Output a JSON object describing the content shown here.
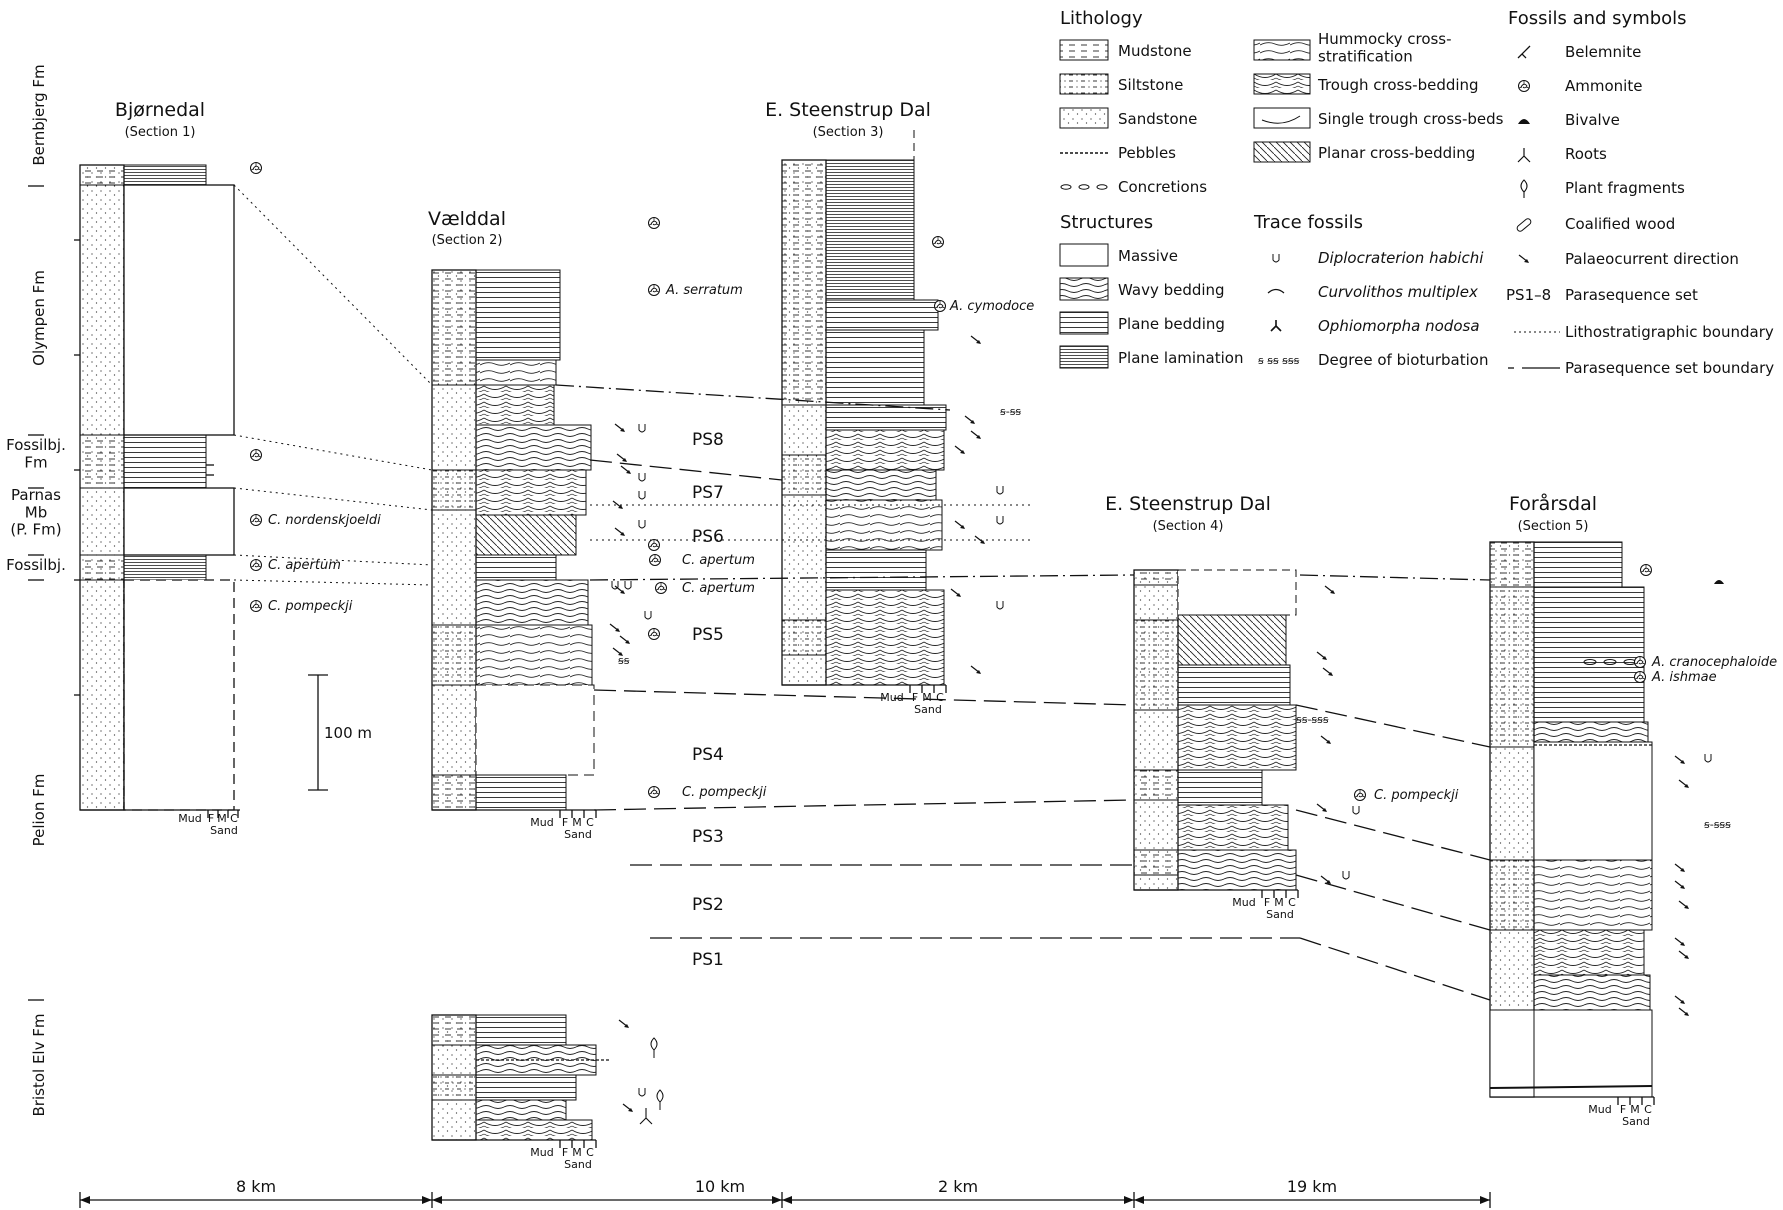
{
  "formations": [
    {
      "key": "bernbjerg",
      "label": "Bernbjerg Fm"
    },
    {
      "key": "olympen",
      "label": "Olympen Fm"
    },
    {
      "key": "fossilbj",
      "label": "Fossilbj.\nFm"
    },
    {
      "key": "parnas",
      "label": "Parnas\nMb\n(P. Fm)"
    },
    {
      "key": "fossilbj2",
      "label": "Fossilbj."
    },
    {
      "key": "pelion",
      "label": "Pelion Fm"
    },
    {
      "key": "bristol",
      "label": "Bristol Elv Fm"
    }
  ],
  "sections": [
    {
      "key": "s1",
      "name": "Bjørnedal",
      "sub": "(Section 1)"
    },
    {
      "key": "s2",
      "name": "Vælddal",
      "sub": "(Section 2)"
    },
    {
      "key": "s3",
      "name": "E. Steenstrup Dal",
      "sub": "(Section 3)"
    },
    {
      "key": "s4",
      "name": "E. Steenstrup Dal",
      "sub": "(Section 4)"
    },
    {
      "key": "s5",
      "name": "Forårsdal",
      "sub": "(Section 5)"
    }
  ],
  "grain_scale": {
    "mud": "Mud",
    "f": "F",
    "m": "M",
    "c": "C",
    "sand": "Sand"
  },
  "scale_bar": "100 m",
  "parasequences": [
    "PS8",
    "PS7",
    "PS6",
    "PS5",
    "PS4",
    "PS3",
    "PS2",
    "PS1"
  ],
  "fossil_labels": [
    "C. nordenskjoeldi",
    "C. apertum",
    "C. pompeckji",
    "A. serratum",
    "C. pompeckji",
    "C. apertum",
    "C. apertum",
    "A. cymodoce",
    "C. pompeckji",
    "A. cranocephaloide",
    "A. ishmae"
  ],
  "bioturbation_marks": [
    "ꞩ-ꞩꞩ",
    "ꞩꞩ-ꞩꞩꞩ",
    "ꞩꞩ",
    "ꞩ-ꞩꞩꞩ"
  ],
  "distances": [
    "8 km",
    "10 km",
    "2 km",
    "19 km"
  ],
  "legend": {
    "lithology": {
      "title": "Lithology",
      "items": [
        "Mudstone",
        "Siltstone",
        "Sandstone",
        "Pebbles",
        "Concretions"
      ]
    },
    "structures": {
      "title": "Structures",
      "items": [
        "Massive",
        "Wavy bedding",
        "Plane bedding",
        "Plane lamination"
      ]
    },
    "cross": {
      "items": [
        "Hummocky cross-\nstratification",
        "Trough cross-bedding",
        "Single trough cross-beds",
        "Planar cross-bedding"
      ]
    },
    "trace": {
      "title": "Trace fossils",
      "items": [
        "Diplocraterion habichi",
        "Curvolithos multiplex",
        "Ophiomorpha nodosa",
        "Degree of bioturbation"
      ]
    },
    "fossils": {
      "title": "Fossils and symbols",
      "items": [
        "Belemnite",
        "Ammonite",
        "Bivalve",
        "Roots",
        "Plant fragments",
        "Coalified wood",
        "Palaeocurrent direction",
        "Parasequence set",
        "Lithostratigraphic boundary",
        "Parasequence set boundary"
      ],
      "ps_code": "PS1–8"
    }
  },
  "icons": {
    "ammonite": "ammonite-icon",
    "belemnite": "belemnite-icon",
    "bivalve": "bivalve-icon",
    "roots": "roots-icon",
    "plant": "plant-fragment-icon",
    "wood": "coalified-wood-icon",
    "arrow": "palaeocurrent-arrow-icon",
    "u": "diplocraterion-icon"
  }
}
